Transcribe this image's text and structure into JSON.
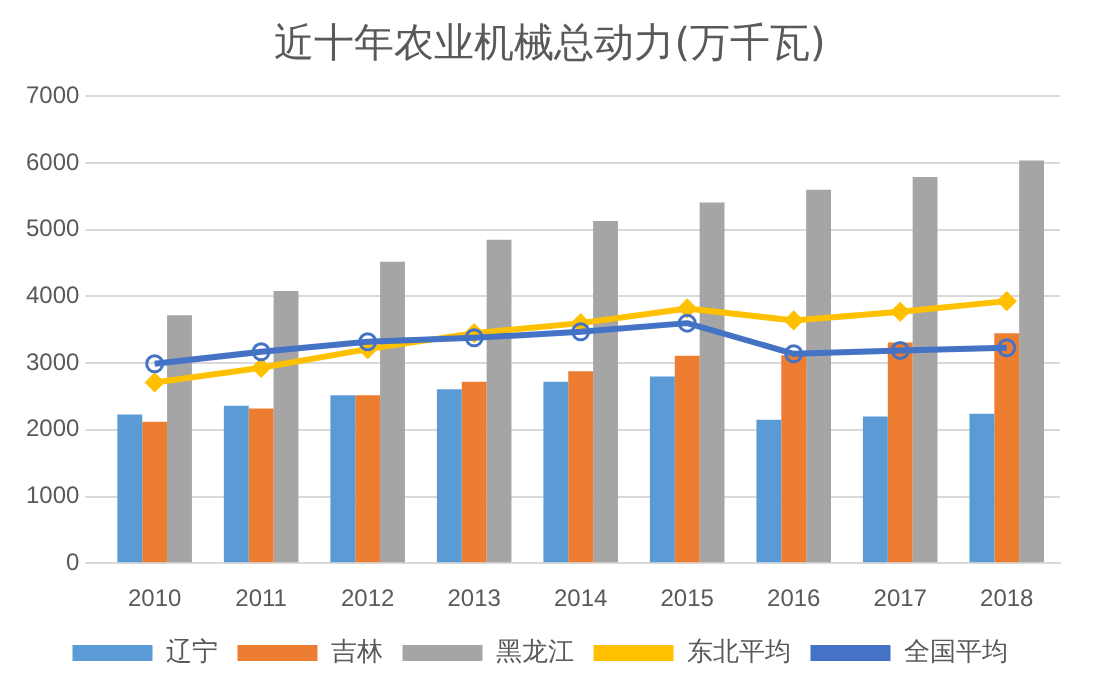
{
  "chart_data": {
    "type": "bar",
    "title": "近十年农业机械总动力(万千瓦)",
    "categories": [
      "2010",
      "2011",
      "2012",
      "2013",
      "2014",
      "2015",
      "2016",
      "2017",
      "2018"
    ],
    "series": [
      {
        "name": "辽宁",
        "color": "#5b9bd5",
        "values": [
          2230,
          2360,
          2520,
          2610,
          2720,
          2800,
          2150,
          2200,
          2240
        ]
      },
      {
        "name": "吉林",
        "color": "#ed7d31",
        "values": [
          2120,
          2320,
          2520,
          2720,
          2880,
          3110,
          3120,
          3310,
          3450
        ]
      },
      {
        "name": "黑龙江",
        "color": "#a5a5a5",
        "values": [
          3720,
          4080,
          4520,
          4850,
          5130,
          5410,
          5600,
          5790,
          6040
        ]
      },
      {
        "name": "东北平均",
        "type": "line",
        "color": "#ffc000",
        "marker": "diamond",
        "values": [
          2710,
          2930,
          3210,
          3450,
          3600,
          3820,
          3640,
          3770,
          3930
        ]
      },
      {
        "name": "全国平均",
        "type": "line",
        "color": "#4472c4",
        "marker": "circle",
        "values": [
          2990,
          3170,
          3320,
          3380,
          3470,
          3600,
          3140,
          3190,
          3230
        ]
      }
    ],
    "ylim": [
      0,
      7000
    ],
    "yticks": [
      0,
      1000,
      2000,
      3000,
      4000,
      5000,
      6000,
      7000
    ],
    "grid": "y",
    "legend": "bottom"
  }
}
